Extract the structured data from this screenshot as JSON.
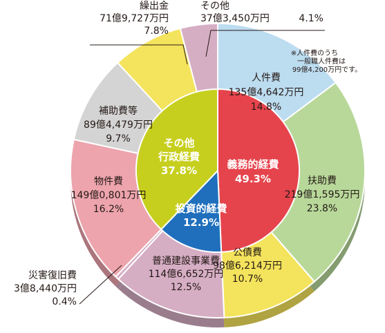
{
  "chart_data": {
    "type": "pie",
    "note_lines": [
      "※人件費のうち",
      "一般職人件費は",
      "99億4,200万円です。"
    ],
    "outer": [
      {
        "name": "人件費",
        "amount": "135億4,642万円",
        "percent": 14.8,
        "percent_label": "14.8%",
        "color": "#bcdcf0"
      },
      {
        "name": "扶助費",
        "amount": "219億1,595万円",
        "percent": 23.8,
        "percent_label": "23.8%",
        "color": "#b8d89a"
      },
      {
        "name": "公債費",
        "amount": "98億6,214万円",
        "percent": 10.7,
        "percent_label": "10.7%",
        "color": "#f4e35c"
      },
      {
        "name": "普通建設事業費",
        "amount": "114億6,652万円",
        "percent": 12.5,
        "percent_label": "12.5%",
        "color": "#d6aec4"
      },
      {
        "name": "災害復旧費",
        "amount": "3億8,440万円",
        "percent": 0.4,
        "percent_label": "0.4%",
        "color": "#d6aec4"
      },
      {
        "name": "物件費",
        "amount": "149億0,801万円",
        "percent": 16.2,
        "percent_label": "16.2%",
        "color": "#eda4ad"
      },
      {
        "name": "補助費等",
        "amount": "89億4,479万円",
        "percent": 9.7,
        "percent_label": "9.7%",
        "color": "#d4d4d4"
      },
      {
        "name": "繰出金",
        "amount": "71億9,727万円",
        "percent": 7.8,
        "percent_label": "7.8%",
        "color": "#f4e35c"
      },
      {
        "name": "その他",
        "amount": "37億3,450万円",
        "percent": 4.1,
        "percent_label": "4.1%",
        "color": "#d6aec4"
      }
    ],
    "inner": [
      {
        "name": "義務的経費",
        "percent": 49.3,
        "percent_label": "49.3%",
        "color": "#e5444c"
      },
      {
        "name": "投資的経費",
        "percent": 12.9,
        "percent_label": "12.9%",
        "color": "#1f6fbd"
      },
      {
        "name": "その他行政経費",
        "name_lines": [
          "その他",
          "行政経費"
        ],
        "percent": 37.8,
        "percent_label": "37.8%",
        "color": "#c7cf1e"
      }
    ]
  }
}
